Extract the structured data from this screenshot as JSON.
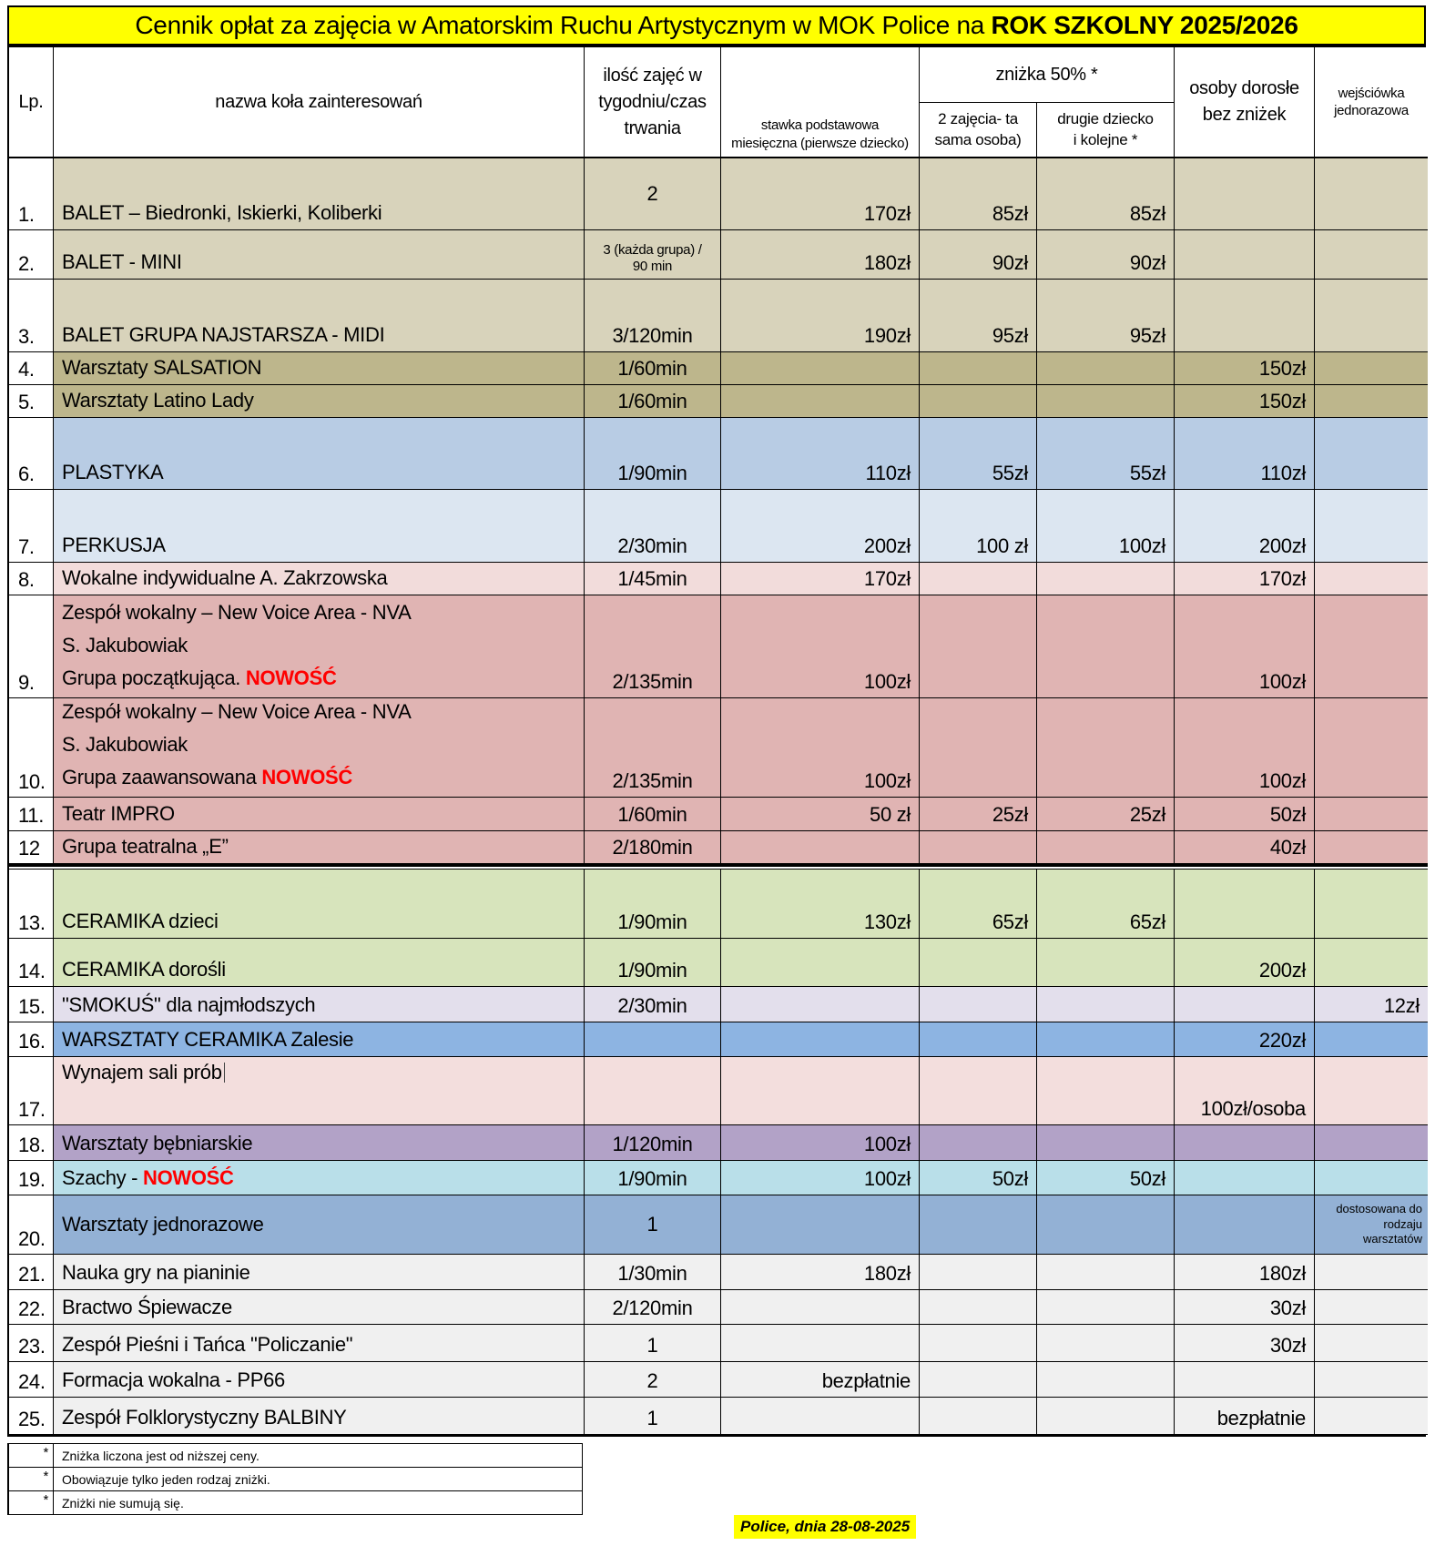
{
  "title": {
    "normal": "Cennik opłat za zajęcia w Amatorskim Ruchu Artystycznym w MOK Police na ",
    "bold": "ROK SZKOLNY 2025/2026"
  },
  "colors": {
    "title_bg": "#ffff00",
    "date_bg": "#ffff00",
    "highlight_red": "#ff0000",
    "border": "#000000"
  },
  "header": {
    "lp": "Lp.",
    "name": "nazwa koła zainteresowań",
    "ilosc": "ilość zajęć w\ntygodniu/czas\ntrwania",
    "stawka": "stawka podstawowa\nmiesięczna (pierwsze dziecko)",
    "znizka": "zniżka 50% *",
    "znizka_sub1": "2 zajęcia- ta\nsama osoba)",
    "znizka_sub2": "drugie dziecko\ni kolejne *",
    "dorosli": "osoby dorosłe\nbez zniżek",
    "wejsciowka": "wejściówka\njednorazowa"
  },
  "rows": [
    {
      "lp": "1.",
      "name": "BALET – Biedronki, Iskierki, Koliberki",
      "ilosc": "2",
      "ilosc_va": "center",
      "stawka": "170zł",
      "z1": "85zł",
      "z2": "85zł",
      "dorosli": "",
      "wejsciowka": "",
      "color": "#d8d3bb"
    },
    {
      "lp": "2.",
      "name": "BALET - MINI",
      "ilosc": "3 (każda grupa) /\n90 min",
      "ilosc_small": true,
      "stawka": "180zł",
      "z1": "90zł",
      "z2": "90zł",
      "dorosli": "",
      "wejsciowka": "",
      "color": "#d8d3bb"
    },
    {
      "lp": "3.",
      "name": "BALET GRUPA NAJSTARSZA - MIDI",
      "ilosc": "3/120min",
      "stawka": "190zł",
      "z1": "95zł",
      "z2": "95zł",
      "dorosli": "",
      "wejsciowka": "",
      "color": "#d8d3bb"
    },
    {
      "lp": "4.",
      "name": "Warsztaty SALSATION",
      "ilosc": "1/60min",
      "stawka": "",
      "z1": "",
      "z2": "",
      "dorosli": "150zł",
      "wejsciowka": "",
      "color": "#bdb68c"
    },
    {
      "lp": "5.",
      "name": "Warsztaty Latino Lady",
      "ilosc": "1/60min",
      "stawka": "",
      "z1": "",
      "z2": "",
      "dorosli": "150zł",
      "wejsciowka": "",
      "color": "#bdb68c"
    },
    {
      "lp": "6.",
      "name": "PLASTYKA",
      "ilosc": "1/90min",
      "stawka": "110zł",
      "z1": "55zł",
      "z2": "55zł",
      "dorosli": "110zł",
      "wejsciowka": "",
      "color": "#b8cce4"
    },
    {
      "lp": "7.",
      "name": "PERKUSJA",
      "ilosc": "2/30min",
      "stawka": "200zł",
      "z1": "100 zł",
      "z2": "100zł",
      "dorosli": "200zł",
      "wejsciowka": "",
      "color": "#dce6f1"
    },
    {
      "lp": "8.",
      "name": "Wokalne indywidualne A. Zakrzowska",
      "ilosc": "1/45min",
      "stawka": "170zł",
      "z1": "",
      "z2": "",
      "dorosli": "170zł",
      "wejsciowka": "",
      "color": "#f2dcdb"
    },
    {
      "lp": "9.",
      "name": "Zespół wokalny – New Voice Area - NVA\nS. Jakubowiak\nGrupa początkująca. ",
      "name_highlight": "NOWOŚĆ",
      "ilosc": "2/135min",
      "stawka": "100zł",
      "z1": "",
      "z2": "",
      "dorosli": "100zł",
      "wejsciowka": "",
      "color": "#e0b4b3"
    },
    {
      "lp": "10.",
      "name": "Zespół wokalny – New Voice Area - NVA\nS. Jakubowiak\nGrupa zaawansowana ",
      "name_highlight": "NOWOŚĆ",
      "ilosc": "2/135min",
      "stawka": "100zł",
      "z1": "",
      "z2": "",
      "dorosli": "100zł",
      "wejsciowka": "",
      "color": "#e0b4b3"
    },
    {
      "lp": "11.",
      "name": "Teatr IMPRO",
      "ilosc": "1/60min",
      "stawka": "50 zł",
      "z1": "25zł",
      "z2": "25zł",
      "dorosli": "50zł",
      "wejsciowka": "",
      "color": "#e0b4b3"
    },
    {
      "lp": "12",
      "name": "Grupa teatralna „E”",
      "ilosc": "2/180min",
      "stawka": "",
      "z1": "",
      "z2": "",
      "dorosli": "40zł",
      "wejsciowka": "",
      "color": "#e0b4b3",
      "thick_after": true
    },
    {
      "lp": "13.",
      "name": "CERAMIKA dzieci",
      "ilosc": "1/90min",
      "stawka": "130zł",
      "z1": "65zł",
      "z2": "65zł",
      "dorosli": "",
      "wejsciowka": "",
      "color": "#d7e4bc"
    },
    {
      "lp": "14.",
      "name": "CERAMIKA dorośli",
      "ilosc": "1/90min",
      "stawka": "",
      "z1": "",
      "z2": "",
      "dorosli": "200zł",
      "wejsciowka": "",
      "color": "#d7e4bc"
    },
    {
      "lp": "15.",
      "name": "\"SMOKUŚ\" dla najmłodszych",
      "ilosc": "2/30min",
      "stawka": "",
      "z1": "",
      "z2": "",
      "dorosli": "",
      "wejsciowka": "12zł",
      "color": "#e3dfec"
    },
    {
      "lp": "16.",
      "name": "WARSZTATY CERAMIKA Zalesie",
      "ilosc": "",
      "stawka": "",
      "z1": "",
      "z2": "",
      "dorosli": "220zł",
      "wejsciowka": "",
      "color": "#8db4e2"
    },
    {
      "lp": "17.",
      "name": "Wynajem sali prób",
      "cursor": true,
      "name_va": "top",
      "ilosc": "",
      "stawka": "",
      "z1": "",
      "z2": "",
      "dorosli": "100zł/osoba",
      "wejsciowka": "",
      "color": "#f3dedd"
    },
    {
      "lp": "18.",
      "name": "Warsztaty bębniarskie",
      "ilosc": "1/120min",
      "stawka": "100zł",
      "z1": "",
      "z2": "",
      "dorosli": "",
      "wejsciowka": "",
      "color": "#b2a2c7"
    },
    {
      "lp": "19.",
      "name": "Szachy - ",
      "name_highlight": "NOWOŚĆ",
      "ilosc": "1/90min",
      "stawka": "100zł",
      "z1": "50zł",
      "z2": "50zł",
      "dorosli": "",
      "wejsciowka": "",
      "color": "#b9dfe9"
    },
    {
      "lp": "20.",
      "name": "Warsztaty jednorazowe",
      "name_va": "center",
      "ilosc": "1",
      "ilosc_va": "center",
      "stawka": "",
      "z1": "",
      "z2": "",
      "dorosli": "",
      "wejsciowka": "",
      "wejsciowka_note": "dostosowana do\nrodzaju\nwarsztatów",
      "color": "#93b1d5"
    },
    {
      "lp": "21.",
      "name": "Nauka gry na pianinie",
      "ilosc": "1/30min",
      "stawka": "180zł",
      "z1": "",
      "z2": "",
      "dorosli": "180zł",
      "wejsciowka": "",
      "color": "#f0f0f0"
    },
    {
      "lp": "22.",
      "name": "Bractwo Śpiewacze",
      "ilosc": "2/120min",
      "stawka": "",
      "z1": "",
      "z2": "",
      "dorosli": "30zł",
      "wejsciowka": "",
      "color": "#f0f0f0"
    },
    {
      "lp": "23.",
      "name": "Zespół Pieśni i Tańca \"Policzanie\"",
      "ilosc": "1",
      "stawka": "",
      "z1": "",
      "z2": "",
      "dorosli": "30zł",
      "wejsciowka": "",
      "color": "#f0f0f0"
    },
    {
      "lp": "24.",
      "name": "Formacja wokalna - PP66",
      "ilosc": "2",
      "stawka": "bezpłatnie",
      "z1": "",
      "z2": "",
      "dorosli": "",
      "wejsciowka": "",
      "color": "#f0f0f0"
    },
    {
      "lp": "25.",
      "name": "Zespół Folklorystyczny BALBINY",
      "ilosc": "1",
      "stawka": "",
      "z1": "",
      "z2": "",
      "dorosli": "bezpłatnie",
      "wejsciowka": "",
      "color": "#f0f0f0"
    }
  ],
  "footnotes": [
    {
      "mark": "*",
      "text": "Zniżka liczona jest od niższej ceny."
    },
    {
      "mark": "*",
      "text": "Obowiązuje tylko jeden rodzaj zniżki."
    },
    {
      "mark": "*",
      "text": "Zniżki nie sumują się."
    }
  ],
  "date_note": "Police, dnia 28-08-2025"
}
